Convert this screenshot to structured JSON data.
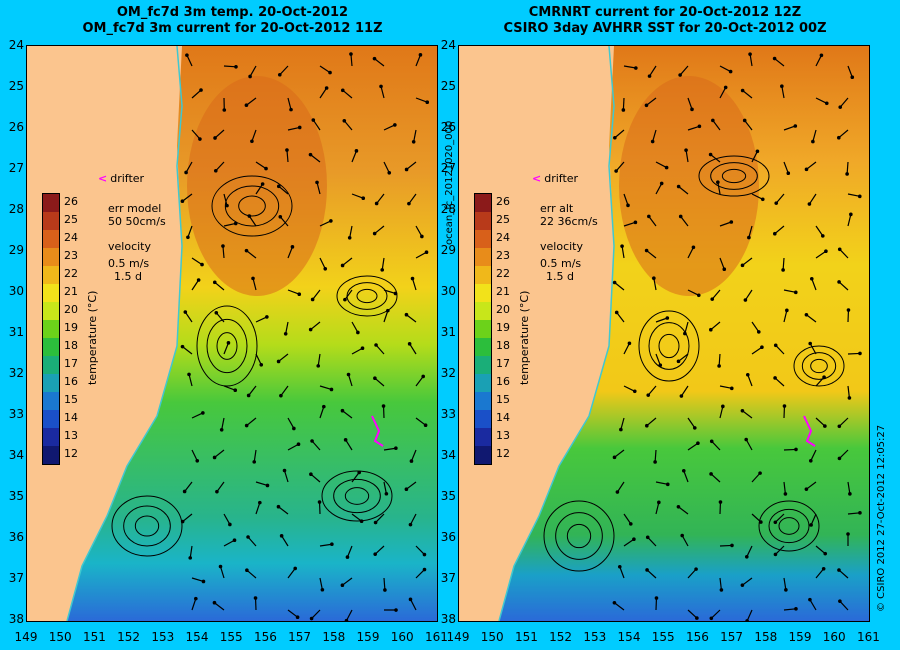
{
  "left": {
    "title1": "OM_fc7d 3m temp. 20-Oct-2012",
    "title2": "OM_fc7d 3m current for 20-Oct-2012 11Z",
    "err_label": "err model",
    "err_value": "50 50cm/s",
    "drifter": "drifter"
  },
  "right": {
    "title1": "CMRNRT current for 20-Oct-2012 12Z",
    "title2": "CSIRO 3day AVHRR SST for 20-Oct-2012 00Z",
    "err_label": "err alt",
    "err_value": "22 36cm/s",
    "drifter": "drifter"
  },
  "velocity_label": "velocity",
  "velocity_speed": "0.5 m/s",
  "velocity_days": "1.5 d",
  "colorbar_label": "temperature (°C)",
  "colorbar_ticks": [
    "26",
    "25",
    "24",
    "23",
    "22",
    "21",
    "20",
    "19",
    "18",
    "17",
    "16",
    "15",
    "14",
    "13",
    "12"
  ],
  "lat_ticks": [
    "24",
    "25",
    "26",
    "27",
    "28",
    "29",
    "30",
    "31",
    "32",
    "33",
    "34",
    "35",
    "36",
    "37",
    "38"
  ],
  "lon_ticks": [
    "149",
    "150",
    "151",
    "152",
    "153",
    "154",
    "155",
    "156",
    "157",
    "158",
    "159",
    "160",
    "161"
  ],
  "middle_vertical_label": "ocean_fc_20121020_000",
  "right_vertical_label": "© CSIRO 2012   27-Oct-2012 12:05:27",
  "colors": {
    "background": "#00ccff",
    "land": "#fbc58e",
    "warm": "#e0781a",
    "mid": "#f2d21a",
    "green": "#48c83c",
    "cool": "#1ab4c8",
    "cold": "#2a6ad8",
    "arrow": "#000000",
    "drifter": "#ff00ff"
  }
}
